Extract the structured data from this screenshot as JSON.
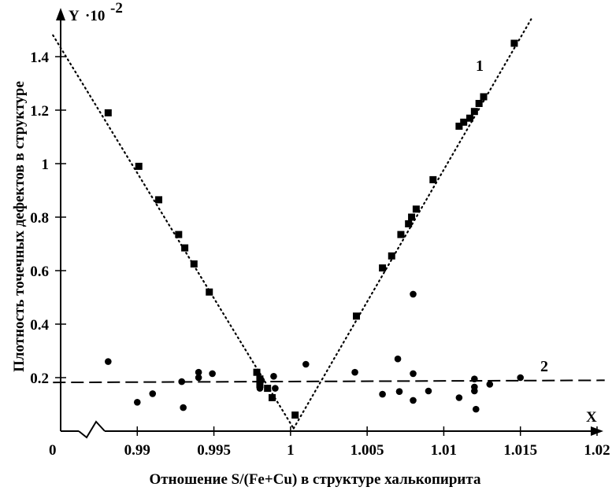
{
  "chart_data": {
    "type": "scatter",
    "title": "",
    "xlabel": "Отношение S/(Fe+Cu) в структуре халькопирита",
    "ylabel": "Плотность точечных дефектов в структуре",
    "x_axis_letter": "X",
    "y_axis_letter": "Y",
    "y_multiplier": "·10",
    "y_multiplier_exp": "-2",
    "axis_break_label": "0",
    "xlim": [
      0.985,
      1.02
    ],
    "ylim": [
      0,
      1.5
    ],
    "x_ticks": [
      "0.99",
      "0.995",
      "1",
      "1.005",
      "1.01",
      "1.015",
      "1.02"
    ],
    "x_tick_values": [
      0.99,
      0.995,
      1.0,
      1.005,
      1.01,
      1.015,
      1.02
    ],
    "y_ticks": [
      "0.2",
      "0.4",
      "0.6",
      "0.8",
      "1",
      "1.2",
      "1.4"
    ],
    "y_tick_values": [
      0.2,
      0.4,
      0.6,
      0.8,
      1.0,
      1.2,
      1.4
    ],
    "grid": false,
    "legend": "inline labels",
    "series": [
      {
        "name": "1",
        "marker": "square",
        "points": [
          [
            0.9881,
            1.19
          ],
          [
            0.9901,
            0.99
          ],
          [
            0.9914,
            0.865
          ],
          [
            0.9927,
            0.735
          ],
          [
            0.9931,
            0.685
          ],
          [
            0.9937,
            0.625
          ],
          [
            0.9947,
            0.52
          ],
          [
            0.9978,
            0.22
          ],
          [
            0.998,
            0.195
          ],
          [
            0.998,
            0.175
          ],
          [
            0.9985,
            0.16
          ],
          [
            0.9988,
            0.125
          ],
          [
            1.0003,
            0.06
          ],
          [
            1.0043,
            0.43
          ],
          [
            1.006,
            0.61
          ],
          [
            1.0066,
            0.655
          ],
          [
            1.0072,
            0.735
          ],
          [
            1.0077,
            0.775
          ],
          [
            1.0079,
            0.8
          ],
          [
            1.0082,
            0.83
          ],
          [
            1.0093,
            0.94
          ],
          [
            1.011,
            1.14
          ],
          [
            1.0113,
            1.155
          ],
          [
            1.0117,
            1.17
          ],
          [
            1.012,
            1.195
          ],
          [
            1.0123,
            1.225
          ],
          [
            1.0126,
            1.25
          ],
          [
            1.0146,
            1.45
          ]
        ],
        "fit": {
          "style": "dotted",
          "segments": [
            [
              [
                0.9845,
                1.48
              ],
              [
                1.0002,
                0.01
              ]
            ],
            [
              [
                1.0002,
                0.01
              ],
              [
                1.0157,
                1.54
              ]
            ]
          ]
        }
      },
      {
        "name": "2",
        "marker": "circle",
        "points": [
          [
            0.9881,
            0.26
          ],
          [
            0.99,
            0.108
          ],
          [
            0.991,
            0.14
          ],
          [
            0.9929,
            0.185
          ],
          [
            0.993,
            0.088
          ],
          [
            0.994,
            0.22
          ],
          [
            0.994,
            0.2
          ],
          [
            0.9949,
            0.215
          ],
          [
            0.998,
            0.16
          ],
          [
            0.9981,
            0.19
          ],
          [
            0.9989,
            0.205
          ],
          [
            0.999,
            0.16
          ],
          [
            1.001,
            0.25
          ],
          [
            1.0042,
            0.22
          ],
          [
            1.006,
            0.138
          ],
          [
            1.007,
            0.27
          ],
          [
            1.0071,
            0.148
          ],
          [
            1.008,
            0.512
          ],
          [
            1.008,
            0.215
          ],
          [
            1.008,
            0.115
          ],
          [
            1.009,
            0.15
          ],
          [
            1.011,
            0.125
          ],
          [
            1.012,
            0.195
          ],
          [
            1.012,
            0.165
          ],
          [
            1.012,
            0.15
          ],
          [
            1.0121,
            0.082
          ],
          [
            1.013,
            0.175
          ],
          [
            1.015,
            0.2
          ]
        ],
        "fit": {
          "style": "dashed",
          "segments": [
            [
              [
                0.9845,
                0.182
              ],
              [
                1.0205,
                0.19
              ]
            ]
          ]
        }
      }
    ]
  }
}
